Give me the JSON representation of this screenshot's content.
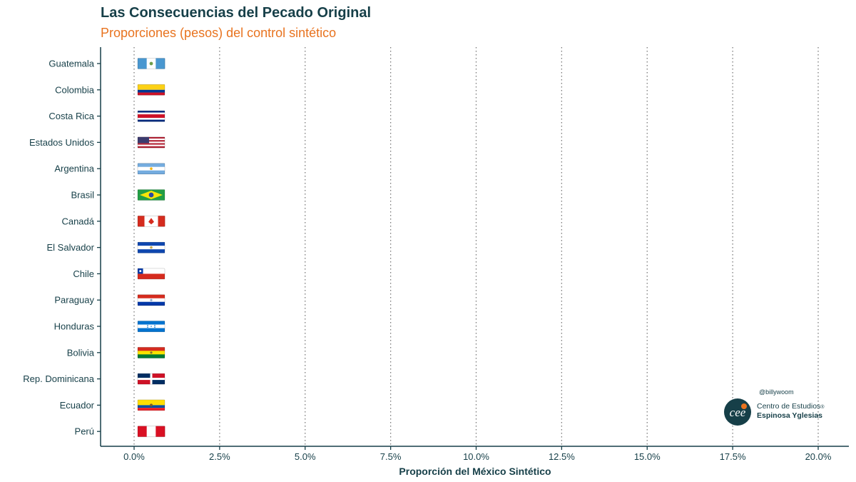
{
  "chart_data": {
    "type": "bar",
    "title": "Las Consecuencias del Pecado Original",
    "subtitle": "Proporciones (pesos) del control sintético",
    "xlabel": "Proporción del México Sintético",
    "ylabel": "",
    "xlim": [
      -0.02,
      0.21
    ],
    "x_ticks": [
      0,
      0.025,
      0.05,
      0.075,
      0.1,
      0.125,
      0.15,
      0.175,
      0.2
    ],
    "x_tick_labels": [
      "0.0%",
      "2.5%",
      "5.0%",
      "7.5%",
      "10.0%",
      "12.5%",
      "15.0%",
      "17.5%",
      "20.0%"
    ],
    "grid": "vertical dotted",
    "categories": [
      "Guatemala",
      "Colombia",
      "Costa Rica",
      "Estados Unidos",
      "Argentina",
      "Brasil",
      "Canadá",
      "El Salvador",
      "Chile",
      "Paraguay",
      "Honduras",
      "Bolivia",
      "Rep. Dominicana",
      "Ecuador",
      "Perú"
    ],
    "values": [
      0,
      0,
      0,
      0,
      0,
      0,
      0,
      0,
      0,
      0,
      0,
      0,
      0,
      0,
      0
    ],
    "markers": [
      "flag-guatemala",
      "flag-colombia",
      "flag-costa-rica",
      "flag-estados-unidos",
      "flag-argentina",
      "flag-brasil",
      "flag-canada",
      "flag-el-salvador",
      "flag-chile",
      "flag-paraguay",
      "flag-honduras",
      "flag-bolivia",
      "flag-rep-dominicana",
      "flag-ecuador",
      "flag-peru"
    ]
  },
  "credits": {
    "handle": "@billywoom",
    "logo_mark": "cee",
    "logo_line1": "Centro de Estudios",
    "logo_line1_mark": "®",
    "logo_line2": "Espinosa Yglesias"
  },
  "colors": {
    "title": "#163f48",
    "subtitle": "#e8731f",
    "axis": "#163f48",
    "grid": "#7a7a7a",
    "logo": "#163f48"
  }
}
